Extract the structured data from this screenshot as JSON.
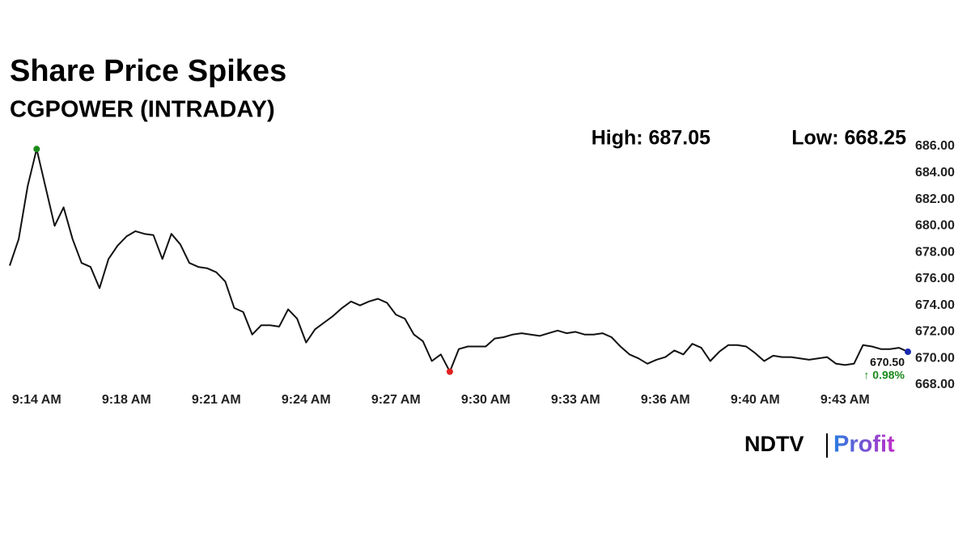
{
  "chart_data": {
    "type": "line",
    "title": "Share Price Spikes",
    "subtitle": "CGPOWER (INTRADAY)",
    "annotations": {
      "high": "High: 687.05",
      "low": "Low: 668.25",
      "last_price": "670.50",
      "change": "↑ 0.98%"
    },
    "logo": {
      "left": "NDTV",
      "right": "Profit"
    },
    "categories": [
      null,
      null,
      null,
      "9:14 AM",
      null,
      null,
      null,
      null,
      null,
      null,
      null,
      null,
      null,
      "9:18 AM",
      null,
      null,
      null,
      null,
      null,
      null,
      null,
      null,
      null,
      "9:21 AM",
      null,
      null,
      null,
      null,
      null,
      null,
      null,
      null,
      null,
      "9:24 AM",
      null,
      null,
      null,
      null,
      null,
      null,
      null,
      null,
      null,
      "9:27 AM",
      null,
      null,
      null,
      null,
      null,
      null,
      null,
      null,
      null,
      "9:30 AM",
      null,
      null,
      null,
      null,
      null,
      null,
      null,
      null,
      null,
      "9:33 AM",
      null,
      null,
      null,
      null,
      null,
      null,
      null,
      null,
      null,
      "9:36 AM",
      null,
      null,
      null,
      null,
      null,
      null,
      null,
      null,
      null,
      "9:40 AM",
      null,
      null,
      null,
      null,
      null,
      null,
      null,
      null,
      null,
      "9:43 AM",
      null,
      null,
      null,
      null,
      null,
      null,
      null
    ],
    "values": [
      677.0,
      679.0,
      683.0,
      685.8,
      682.9,
      680.0,
      681.4,
      679.0,
      677.2,
      676.9,
      675.3,
      677.5,
      678.5,
      679.2,
      679.6,
      679.4,
      679.3,
      677.5,
      679.4,
      678.6,
      677.2,
      676.9,
      676.8,
      676.5,
      675.8,
      673.8,
      673.5,
      671.8,
      672.5,
      672.5,
      672.4,
      673.7,
      673.0,
      671.2,
      672.2,
      672.7,
      673.2,
      673.8,
      674.3,
      674.0,
      674.3,
      674.5,
      674.2,
      673.3,
      673.0,
      671.8,
      671.3,
      669.8,
      670.3,
      669.0,
      670.7,
      670.9,
      670.9,
      670.9,
      671.5,
      671.6,
      671.8,
      671.9,
      671.8,
      671.7,
      671.9,
      672.1,
      671.9,
      672.0,
      671.8,
      671.8,
      671.9,
      671.6,
      670.9,
      670.3,
      670.0,
      669.6,
      669.9,
      670.1,
      670.6,
      670.3,
      671.1,
      670.8,
      669.8,
      670.5,
      671.0,
      671.0,
      670.9,
      670.4,
      669.8,
      670.2,
      670.1,
      670.1,
      670.0,
      669.9,
      670.0,
      670.1,
      669.6,
      669.5,
      669.6,
      671.0,
      670.9,
      670.7,
      670.7,
      670.8,
      670.5
    ],
    "color": "#111111",
    "marker_colors": {
      "high": "#1a8a1a",
      "low": "#e02020",
      "last": "#1a2ab0"
    },
    "change_color": "#1a8a1a",
    "ylim": [
      668,
      686
    ],
    "yticks": [
      {
        "value": 668,
        "label": "668.00"
      },
      {
        "value": 670,
        "label": "670.00"
      },
      {
        "value": 672,
        "label": "672.00"
      },
      {
        "value": 674,
        "label": "674.00"
      },
      {
        "value": 676,
        "label": "676.00"
      },
      {
        "value": 678,
        "label": "678.00"
      },
      {
        "value": 680,
        "label": "680.00"
      },
      {
        "value": 682,
        "label": "682.00"
      },
      {
        "value": 684,
        "label": "684.00"
      },
      {
        "value": 686,
        "label": "686.00"
      }
    ],
    "grid": false
  }
}
